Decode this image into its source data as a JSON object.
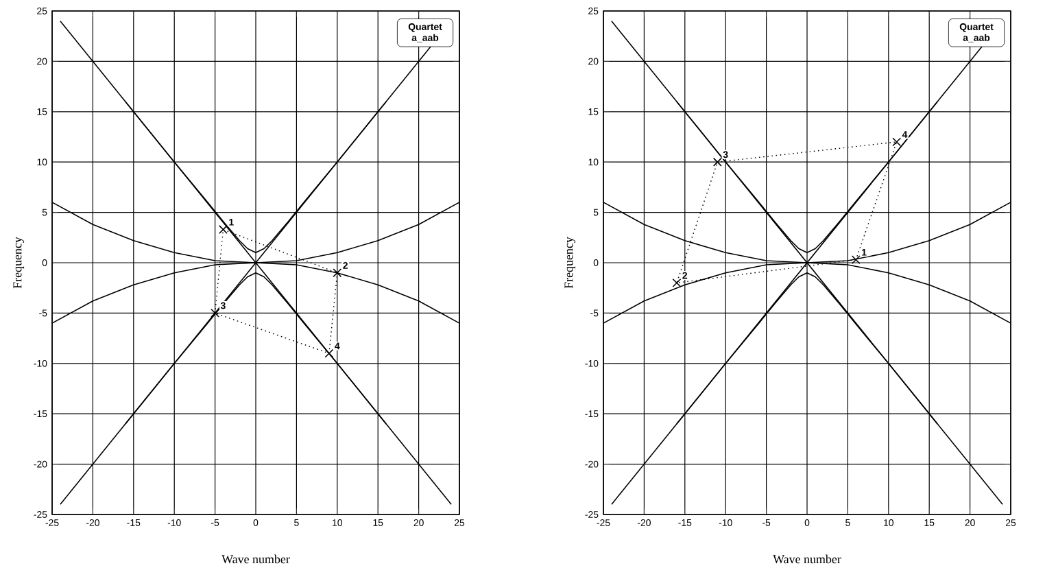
{
  "chart_data": [
    {
      "type": "line",
      "xlabel": "Wave number",
      "ylabel": "Frequency",
      "xlim": [
        -25,
        25
      ],
      "ylim": [
        -25,
        25
      ],
      "xticks": [
        -25,
        -20,
        -15,
        -10,
        -5,
        0,
        5,
        10,
        15,
        20,
        25
      ],
      "yticks": [
        -25,
        -20,
        -15,
        -10,
        -5,
        0,
        5,
        10,
        15,
        20,
        25
      ],
      "grid": true,
      "annotations": [
        "Quartet a_aab",
        {
          "text": "1",
          "x": -4,
          "y": 3.3
        },
        {
          "text": "2",
          "x": 10,
          "y": -1
        },
        {
          "text": "3",
          "x": -5,
          "y": -5
        },
        {
          "text": "4",
          "x": 9,
          "y": -9
        }
      ],
      "series": [
        {
          "color": "#000000",
          "marker": "none",
          "line_style": "solid",
          "x": [
            -24,
            24
          ],
          "values": [
            24,
            -24
          ]
        },
        {
          "color": "#000000",
          "marker": "none",
          "line_style": "solid",
          "x": [
            -24,
            24
          ],
          "values": [
            -24,
            24
          ]
        },
        {
          "color": "#000000",
          "marker": "none",
          "line_style": "solid",
          "x": [
            -25,
            -20,
            -15,
            -10,
            -5,
            0,
            5,
            10,
            15,
            20,
            25
          ],
          "values": [
            6,
            3.8,
            2.2,
            1,
            0.2,
            0,
            0.2,
            1,
            2.2,
            3.8,
            6
          ]
        },
        {
          "color": "#000000",
          "marker": "none",
          "line_style": "solid",
          "x": [
            -25,
            -20,
            -15,
            -10,
            -5,
            0,
            5,
            10,
            15,
            20,
            25
          ],
          "values": [
            -6,
            -3.8,
            -2.2,
            -1,
            -0.2,
            0,
            -0.2,
            -1,
            -2.2,
            -3.8,
            -6
          ]
        },
        {
          "color": "#000000",
          "marker": "none",
          "line_style": "solid",
          "x": [
            -16,
            -10,
            -6,
            -4,
            -2,
            -1,
            0,
            1,
            2,
            4,
            6,
            10,
            16
          ],
          "values": [
            16,
            10,
            6.1,
            4.1,
            2.2,
            1.4,
            1,
            1.4,
            2.2,
            4.1,
            6.1,
            10,
            16
          ]
        },
        {
          "color": "#000000",
          "marker": "none",
          "line_style": "solid",
          "x": [
            -16,
            -10,
            -6,
            -4,
            -2,
            -1,
            0,
            1,
            2,
            4,
            6,
            10,
            16
          ],
          "values": [
            -16,
            -10,
            -6.1,
            -4.1,
            -2.2,
            -1.4,
            -1,
            -1.4,
            -2.2,
            -4.1,
            -6.1,
            -10,
            -16
          ]
        },
        {
          "color": "#000000",
          "marker": "none",
          "line_style": "dotted",
          "x": [
            -5,
            -4,
            10
          ],
          "values": [
            -5,
            3.3,
            -1
          ]
        },
        {
          "color": "#000000",
          "marker": "none",
          "line_style": "dotted",
          "x": [
            10,
            9,
            -5
          ],
          "values": [
            -1,
            -9,
            -5
          ]
        },
        {
          "type": "scatter",
          "color": "#000000",
          "marker": "cross",
          "x": [
            -4,
            10,
            -5,
            9
          ],
          "values": [
            3.3,
            -1,
            -5,
            -9
          ]
        }
      ]
    },
    {
      "type": "line",
      "xlabel": "Wave number",
      "ylabel": "Frequency",
      "xlim": [
        -25,
        25
      ],
      "ylim": [
        -25,
        25
      ],
      "xticks": [
        -25,
        -20,
        -15,
        -10,
        -5,
        0,
        5,
        10,
        15,
        20,
        25
      ],
      "yticks": [
        -25,
        -20,
        -15,
        -10,
        -5,
        0,
        5,
        10,
        15,
        20,
        25
      ],
      "grid": true,
      "annotations": [
        "Quartet a_aab",
        {
          "text": "1",
          "x": 6,
          "y": 0.3
        },
        {
          "text": "2",
          "x": -16,
          "y": -2
        },
        {
          "text": "3",
          "x": -11,
          "y": 10
        },
        {
          "text": "4",
          "x": 11,
          "y": 12
        }
      ],
      "series": [
        {
          "color": "#000000",
          "marker": "none",
          "line_style": "solid",
          "x": [
            -24,
            24
          ],
          "values": [
            24,
            -24
          ]
        },
        {
          "color": "#000000",
          "marker": "none",
          "line_style": "solid",
          "x": [
            -24,
            24
          ],
          "values": [
            -24,
            24
          ]
        },
        {
          "color": "#000000",
          "marker": "none",
          "line_style": "solid",
          "x": [
            -25,
            -20,
            -15,
            -10,
            -5,
            0,
            5,
            10,
            15,
            20,
            25
          ],
          "values": [
            6,
            3.8,
            2.2,
            1,
            0.2,
            0,
            0.2,
            1,
            2.2,
            3.8,
            6
          ]
        },
        {
          "color": "#000000",
          "marker": "none",
          "line_style": "solid",
          "x": [
            -25,
            -20,
            -15,
            -10,
            -5,
            0,
            5,
            10,
            15,
            20,
            25
          ],
          "values": [
            -6,
            -3.8,
            -2.2,
            -1,
            -0.2,
            0,
            -0.2,
            -1,
            -2.2,
            -3.8,
            -6
          ]
        },
        {
          "color": "#000000",
          "marker": "none",
          "line_style": "solid",
          "x": [
            -16,
            -10,
            -6,
            -4,
            -2,
            -1,
            0,
            1,
            2,
            4,
            6,
            10,
            16
          ],
          "values": [
            16,
            10,
            6.1,
            4.1,
            2.2,
            1.4,
            1,
            1.4,
            2.2,
            4.1,
            6.1,
            10,
            16
          ]
        },
        {
          "color": "#000000",
          "marker": "none",
          "line_style": "solid",
          "x": [
            -16,
            -10,
            -6,
            -4,
            -2,
            -1,
            0,
            1,
            2,
            4,
            6,
            10,
            16
          ],
          "values": [
            -16,
            -10,
            -6.1,
            -4.1,
            -2.2,
            -1.4,
            -1,
            -1.4,
            -2.2,
            -4.1,
            -6.1,
            -10,
            -16
          ]
        },
        {
          "color": "#000000",
          "marker": "none",
          "line_style": "dotted",
          "x": [
            6,
            -16,
            -11
          ],
          "values": [
            0.3,
            -2,
            10
          ]
        },
        {
          "color": "#000000",
          "marker": "none",
          "line_style": "dotted",
          "x": [
            -11,
            11,
            6
          ],
          "values": [
            10,
            12,
            0.3
          ]
        },
        {
          "type": "scatter",
          "color": "#000000",
          "marker": "cross",
          "x": [
            6,
            -16,
            -11,
            11
          ],
          "values": [
            0.3,
            -2,
            10,
            12
          ]
        }
      ]
    }
  ]
}
